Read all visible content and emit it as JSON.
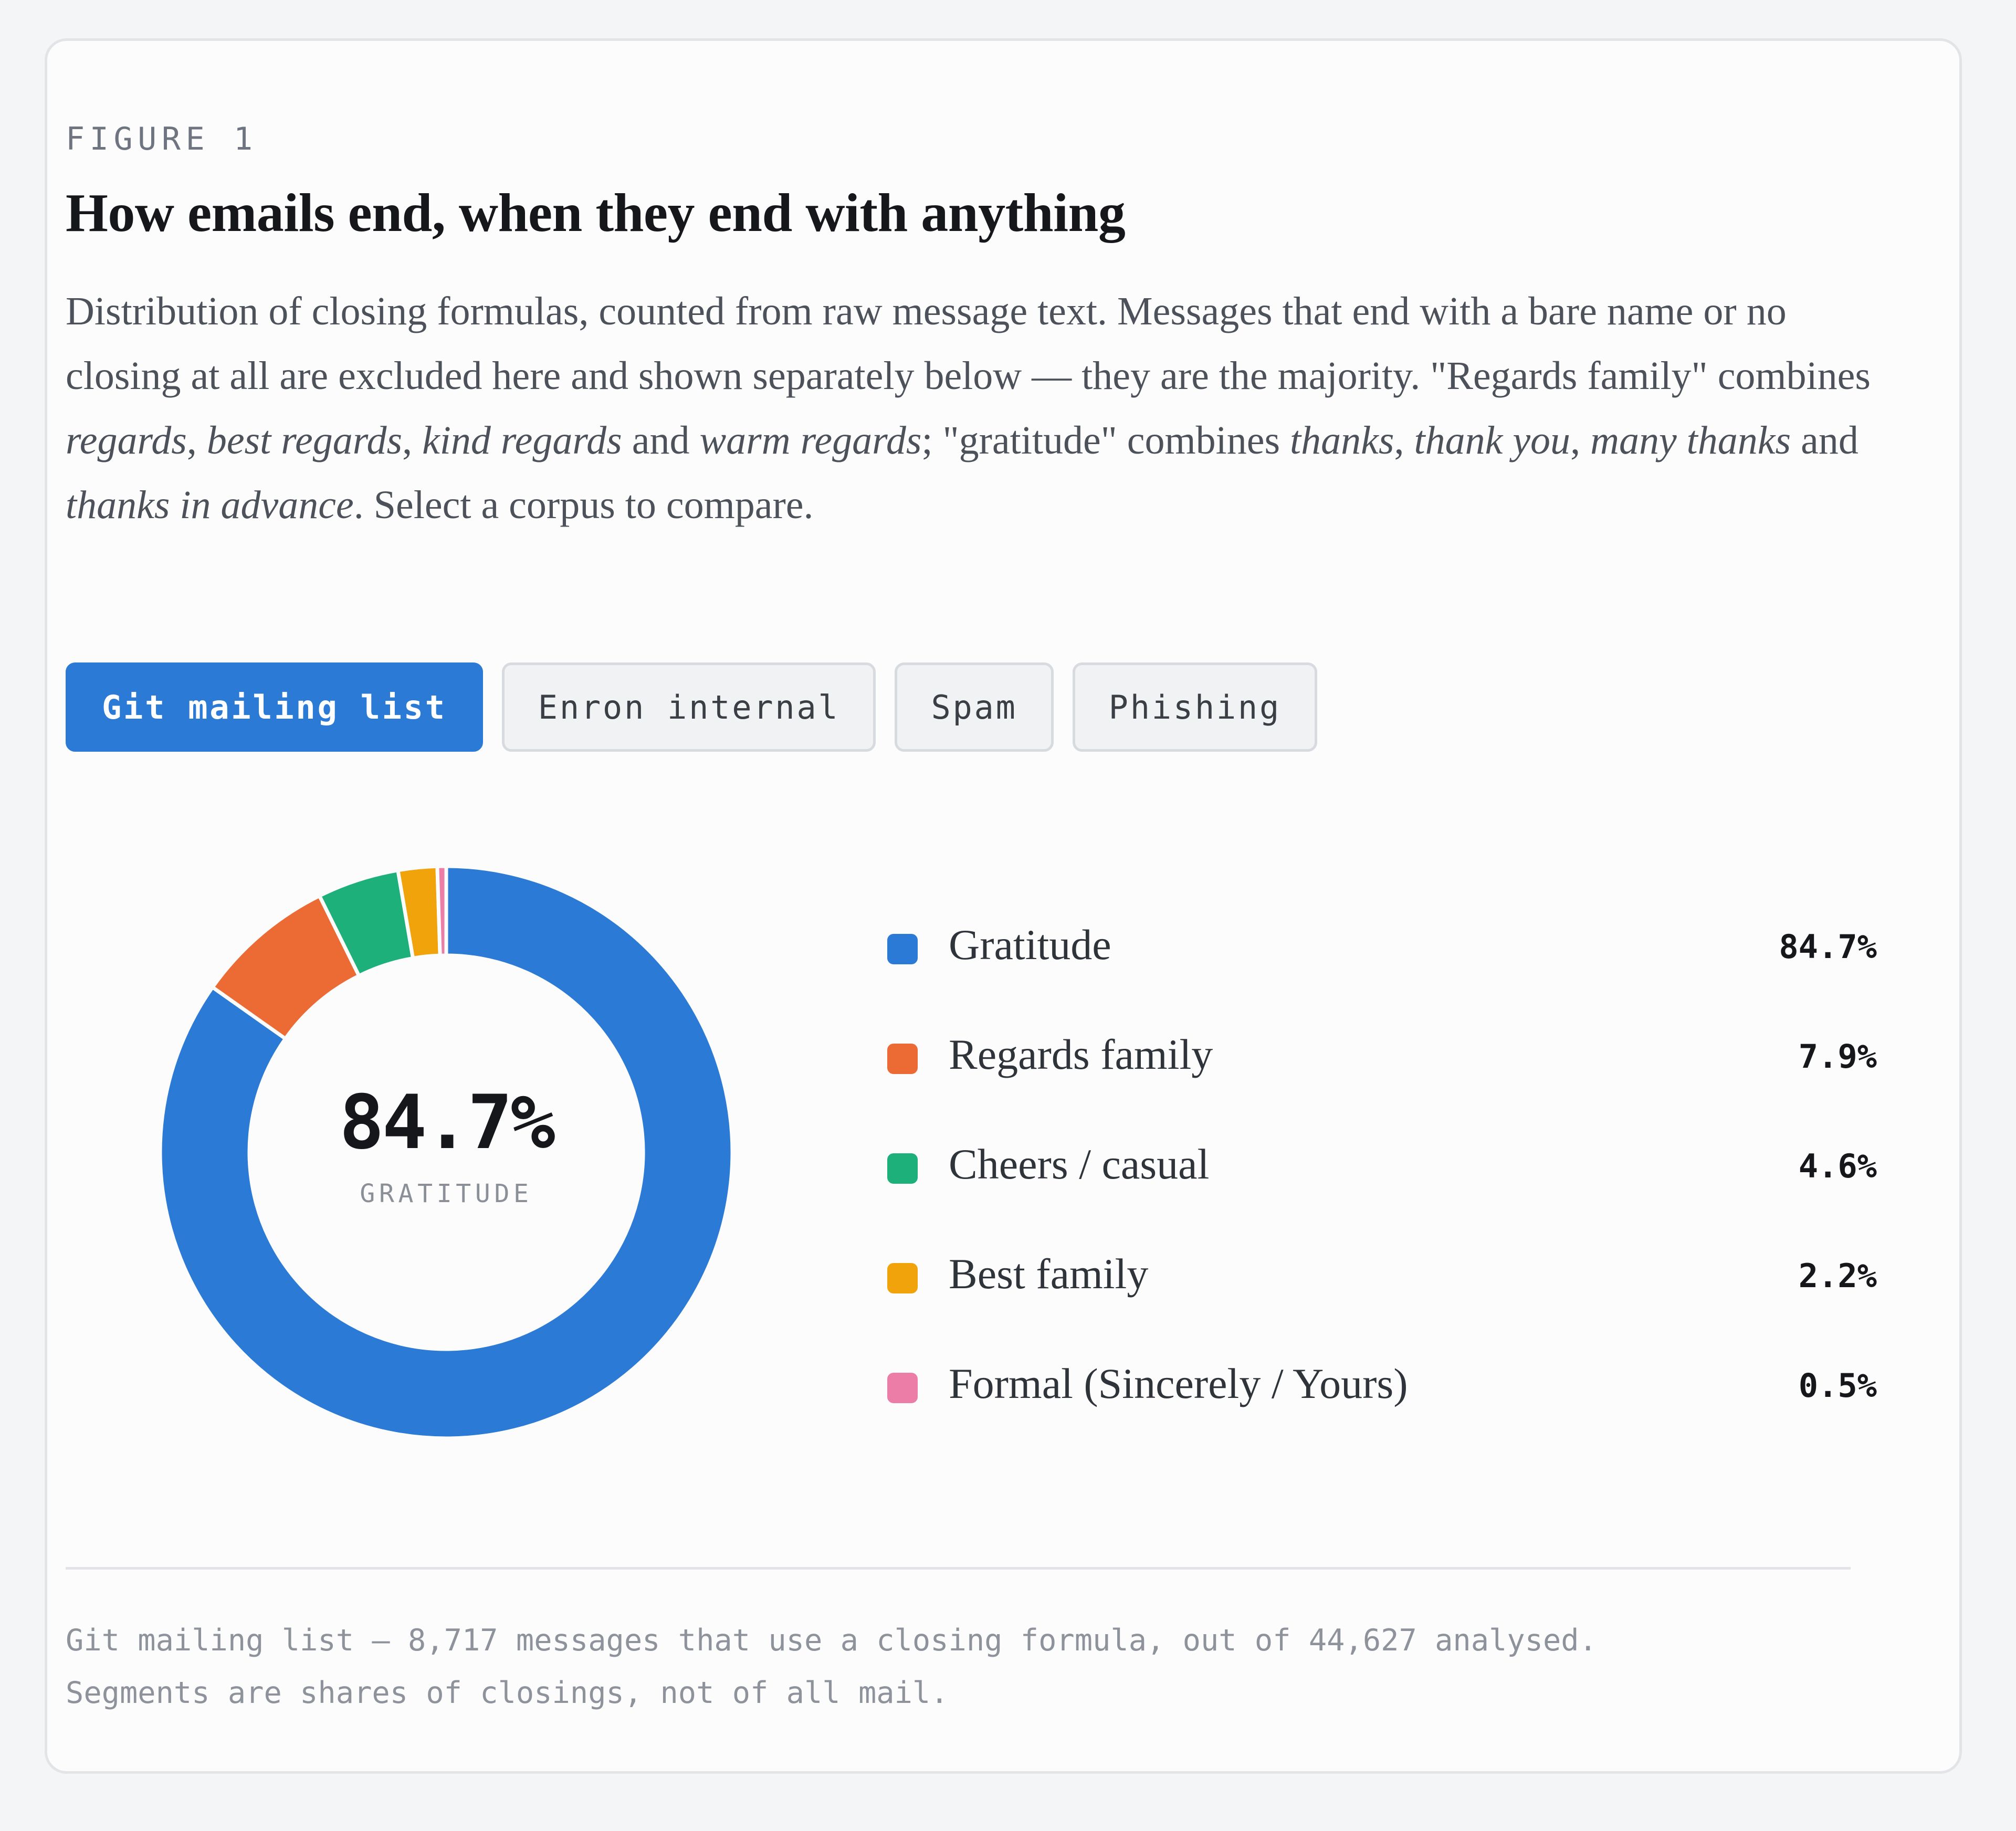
{
  "figure": {
    "kicker": "FIGURE 1",
    "title": "How emails end, when they end with anything",
    "description_parts": [
      {
        "text": "Distribution of closing formulas, counted from raw message text. Messages that end with a bare name or no closing at all are excluded here and shown separately below — they are the majority. \"Regards family\" combines ",
        "italic": false
      },
      {
        "text": "regards",
        "italic": true
      },
      {
        "text": ", ",
        "italic": false
      },
      {
        "text": "best regards",
        "italic": true
      },
      {
        "text": ", ",
        "italic": false
      },
      {
        "text": "kind regards",
        "italic": true
      },
      {
        "text": " and ",
        "italic": false
      },
      {
        "text": "warm regards",
        "italic": true
      },
      {
        "text": "; \"gratitude\" combines ",
        "italic": false
      },
      {
        "text": "thanks",
        "italic": true
      },
      {
        "text": ", ",
        "italic": false
      },
      {
        "text": "thank you",
        "italic": true
      },
      {
        "text": ", ",
        "italic": false
      },
      {
        "text": "many thanks",
        "italic": true
      },
      {
        "text": " and ",
        "italic": false
      },
      {
        "text": "thanks in advance",
        "italic": true
      },
      {
        "text": ". Select a corpus to compare.",
        "italic": false
      }
    ]
  },
  "tabs": [
    {
      "label": "Git mailing list",
      "active": true
    },
    {
      "label": "Enron internal",
      "active": false
    },
    {
      "label": "Spam",
      "active": false
    },
    {
      "label": "Phishing",
      "active": false
    }
  ],
  "center": {
    "value": "84.7%",
    "label": "GRATITUDE"
  },
  "chart_data": {
    "type": "pie",
    "donut": true,
    "categories": [
      "Gratitude",
      "Regards family",
      "Cheers / casual",
      "Best family",
      "Formal (Sincerely / Yours)"
    ],
    "values": [
      84.7,
      7.9,
      4.6,
      2.2,
      0.5
    ],
    "value_labels": [
      "84.7%",
      "7.9%",
      "4.6%",
      "2.2%",
      "0.5%"
    ],
    "colors": [
      "#2b7ad6",
      "#ec6b35",
      "#1db07a",
      "#f0a30a",
      "#ec7da6"
    ],
    "legend_position": "right"
  },
  "footnote": {
    "line1": "Git mailing list — 8,717 messages that use a closing formula, out of 44,627 analysed.",
    "line2": "Segments are shares of closings, not of all mail."
  }
}
